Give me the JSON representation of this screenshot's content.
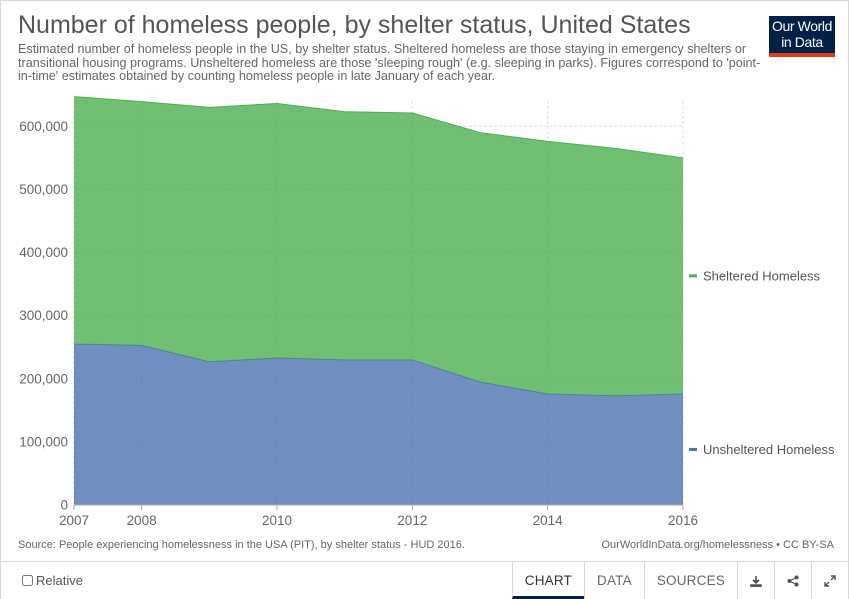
{
  "title": "Number of homeless people, by shelter status, United States",
  "subtitle": "Estimated number of homeless people in the US, by shelter status. Sheltered homeless are those staying in emergency shelters or transitional housing programs. Unsheltered homeless are those 'sleeping rough' (e.g. sleeping in parks). Figures correspond to 'point-in-time' estimates obtained by counting homeless people in late January of each year.",
  "logo": {
    "line1": "Our World",
    "line2": "in Data"
  },
  "footer": {
    "source": "Source: People experiencing homelessness in the USA (PIT), by shelter status - HUD 2016.",
    "credit": "OurWorldInData.org/homelessness • CC BY-SA"
  },
  "controls": {
    "relative_label": "Relative",
    "tabs": [
      "CHART",
      "DATA",
      "SOURCES"
    ],
    "icons": [
      "download-icon",
      "share-icon",
      "expand-icon"
    ]
  },
  "colors": {
    "sheltered": "#4caf50",
    "unsheltered": "#4c72b0"
  },
  "chart_data": {
    "type": "area",
    "stacked": true,
    "x": [
      2007,
      2008,
      2009,
      2010,
      2011,
      2012,
      2013,
      2014,
      2015,
      2016
    ],
    "x_ticks": [
      2007,
      2008,
      2010,
      2012,
      2014,
      2016
    ],
    "y_ticks": [
      0,
      100000,
      200000,
      300000,
      400000,
      500000,
      600000
    ],
    "y_tick_labels": [
      "0",
      "100,000",
      "200,000",
      "300,000",
      "400,000",
      "500,000",
      "600,000"
    ],
    "xlim": [
      2007,
      2016
    ],
    "ylim": [
      0,
      640000
    ],
    "grid": true,
    "legend": "right",
    "series": [
      {
        "name": "Unsheltered Homeless",
        "values": [
          255000,
          253000,
          227000,
          233000,
          230000,
          230000,
          195000,
          176000,
          173000,
          176000
        ]
      },
      {
        "name": "Sheltered Homeless",
        "values": [
          392000,
          386000,
          403000,
          403000,
          393000,
          391000,
          395000,
          400000,
          392000,
          374000
        ]
      }
    ]
  }
}
